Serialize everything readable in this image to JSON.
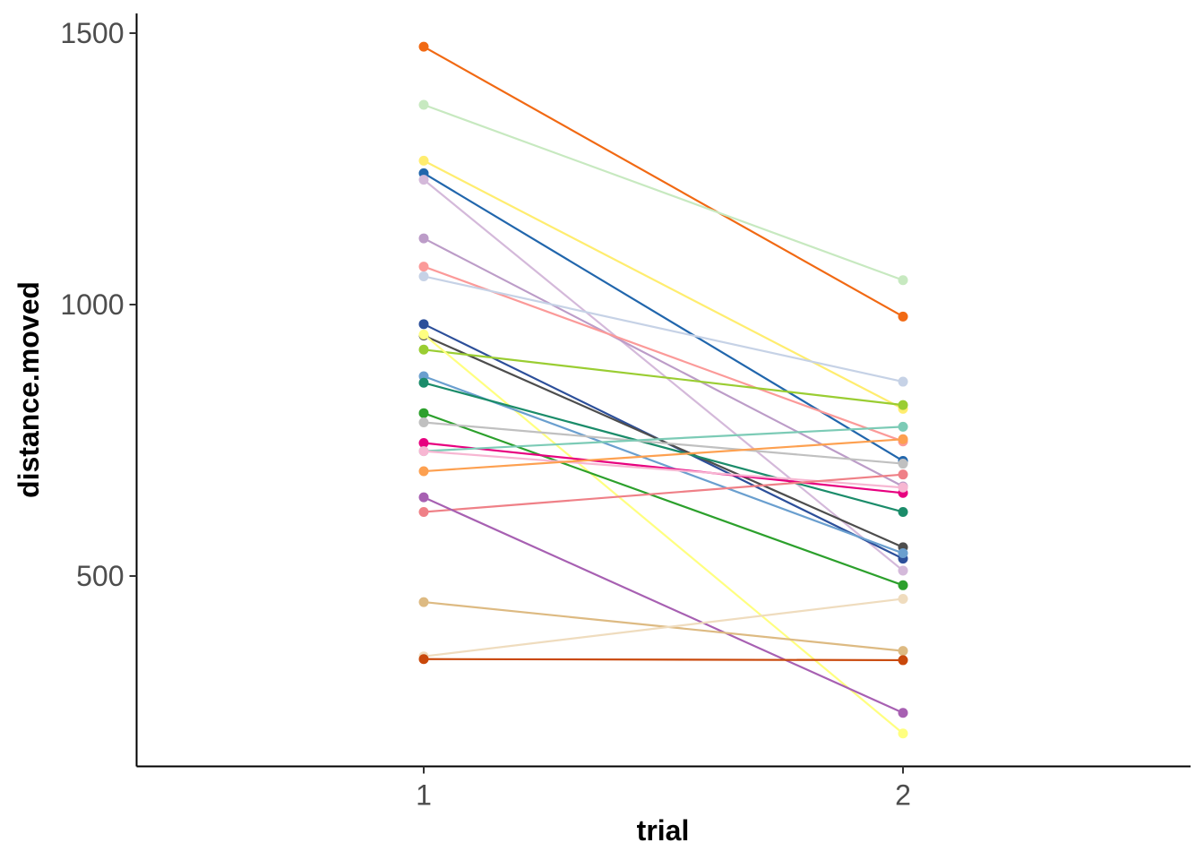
{
  "chart_data": {
    "type": "line",
    "title": "",
    "xlabel": "trial",
    "ylabel": "distance.moved",
    "x_categories": [
      "1",
      "2"
    ],
    "y_ticks": [
      500,
      1000,
      1500
    ],
    "ylim": [
      165,
      1535
    ],
    "grid": false,
    "legend": "none",
    "series": [
      {
        "color": "#F16913",
        "values": [
          1475,
          978
        ]
      },
      {
        "color": "#C7E9C0",
        "values": [
          1368,
          1045
        ]
      },
      {
        "color": "#FFED6F",
        "values": [
          1265,
          808
        ]
      },
      {
        "color": "#2166AC",
        "values": [
          1242,
          712
        ]
      },
      {
        "color": "#D4B9DA",
        "values": [
          1230,
          510
        ]
      },
      {
        "color": "#BC9CC8",
        "values": [
          1122,
          665
        ]
      },
      {
        "color": "#FB9A99",
        "values": [
          1070,
          748
        ]
      },
      {
        "color": "#C6D2E6",
        "values": [
          1052,
          858
        ]
      },
      {
        "color": "#2C4F9A",
        "values": [
          964,
          532
        ]
      },
      {
        "color": "#4D4D4D",
        "values": [
          943,
          553
        ]
      },
      {
        "color": "#9ACD32",
        "values": [
          917,
          815
        ]
      },
      {
        "color": "#FFFF80",
        "values": [
          945,
          210
        ]
      },
      {
        "color": "#6A9FCF",
        "values": [
          868,
          542
        ]
      },
      {
        "color": "#1B8C6A",
        "values": [
          856,
          618
        ]
      },
      {
        "color": "#2CA02C",
        "values": [
          800,
          483
        ]
      },
      {
        "color": "#C0C0C0",
        "values": [
          783,
          707
        ]
      },
      {
        "color": "#E7007F",
        "values": [
          745,
          653
        ]
      },
      {
        "color": "#7CCBB6",
        "values": [
          730,
          775
        ]
      },
      {
        "color": "#F7B6D2",
        "values": [
          730,
          663
        ]
      },
      {
        "color": "#FDA050",
        "values": [
          693,
          752
        ]
      },
      {
        "color": "#EF8087",
        "values": [
          618,
          687
        ]
      },
      {
        "color": "#A760B2",
        "values": [
          645,
          248
        ]
      },
      {
        "color": "#DDBA82",
        "values": [
          452,
          362
        ]
      },
      {
        "color": "#EFDCBE",
        "values": [
          352,
          458
        ]
      },
      {
        "color": "#C9480B",
        "values": [
          347,
          345
        ]
      }
    ]
  }
}
